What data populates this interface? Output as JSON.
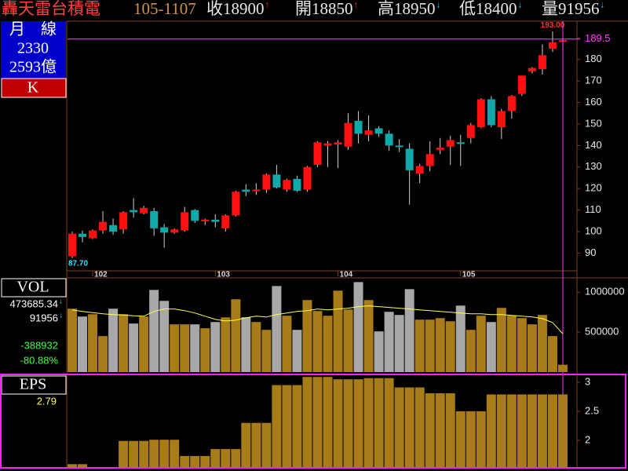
{
  "header": {
    "name": "轟天雷台積電",
    "date": "105-1107",
    "items": [
      {
        "text": "收18900",
        "arrow": "↑",
        "arrow_color": "#ff3030"
      },
      {
        "text": "開18850",
        "arrow": "↑",
        "arrow_color": "#ff3030"
      },
      {
        "text": "高18950",
        "arrow": "↓",
        "arrow_color": "#00e0ff"
      },
      {
        "text": "低18400",
        "arrow": "↓",
        "arrow_color": "#00e0ff"
      },
      {
        "text": "量91956",
        "arrow": "↓",
        "arrow_color": "#00e0ff"
      }
    ]
  },
  "side": {
    "title": "月　線",
    "code": "2330",
    "cap": "2593億",
    "period": "K"
  },
  "vol_panel": {
    "label": "VOL",
    "items": [
      {
        "text": "473685.34",
        "color": "#ffffff",
        "arrow": "↓"
      },
      {
        "text": "91956",
        "color": "#ffffff",
        "arrow": "↓"
      },
      {
        "text": "-388932",
        "color": "#40ff40"
      },
      {
        "text": "-80.88%",
        "color": "#40ff40"
      }
    ]
  },
  "eps_panel": {
    "label": "EPS",
    "value_text": "2.79"
  },
  "chart_data": [
    {
      "type": "candlestick",
      "categories": [
        null,
        null,
        "102",
        null,
        null,
        null,
        null,
        null,
        null,
        null,
        null,
        null,
        null,
        null,
        "103",
        null,
        null,
        null,
        null,
        null,
        null,
        null,
        null,
        null,
        null,
        null,
        "104",
        null,
        null,
        null,
        null,
        null,
        null,
        null,
        null,
        null,
        null,
        null,
        "105",
        null,
        null,
        null,
        null,
        null,
        null,
        null,
        null,
        null,
        null
      ],
      "open": [
        88.5,
        99,
        97,
        100.5,
        103,
        101,
        110,
        108.5,
        109.5,
        102,
        99.5,
        100.5,
        110,
        105,
        105.5,
        101.5,
        107.5,
        119.5,
        119,
        119.5,
        126.5,
        119.5,
        124.5,
        119.5,
        131,
        140,
        140.5,
        139.5,
        151.5,
        145,
        148,
        145.5,
        140,
        138.5,
        127,
        130.5,
        138,
        139.5,
        141.5,
        143.5,
        148.5,
        161.5,
        148.5,
        156,
        164,
        174.5,
        175.5,
        185,
        188.5
      ],
      "high": [
        100,
        100.5,
        101,
        109.5,
        106,
        109.5,
        115.5,
        112,
        111,
        103.5,
        101.5,
        111.5,
        110.5,
        106,
        108,
        108,
        119,
        122,
        122.5,
        127,
        131,
        124.5,
        126,
        130.5,
        142,
        142,
        142.5,
        155,
        156,
        154,
        149,
        147,
        143,
        141,
        131.5,
        142,
        143.5,
        144.5,
        145,
        150.5,
        162,
        163,
        157,
        163.5,
        172.5,
        176.5,
        187,
        193,
        189.5
      ],
      "low": [
        87.7,
        95,
        96.5,
        99,
        98.5,
        99,
        106.5,
        108,
        98,
        92.5,
        99,
        100,
        104,
        103,
        102,
        100,
        107,
        116.5,
        117,
        118,
        120,
        118.5,
        118.5,
        118.5,
        130,
        130,
        129.5,
        138,
        141,
        142,
        144,
        137.5,
        137,
        112.5,
        122.5,
        128,
        136,
        131,
        130.5,
        141,
        148,
        148.5,
        143,
        152.5,
        163,
        173.5,
        173,
        183.5,
        184
      ],
      "close": [
        99,
        97.5,
        100.5,
        104.5,
        100,
        109,
        109,
        111,
        101.5,
        99.5,
        101,
        109,
        105,
        105.5,
        104.5,
        107.5,
        118.5,
        118.5,
        119.5,
        126.5,
        120.5,
        124,
        119,
        130,
        141.5,
        141,
        141.5,
        150.5,
        145.5,
        147,
        145.5,
        140,
        139.5,
        128.5,
        130.5,
        136,
        139,
        142.5,
        141,
        149.5,
        161.5,
        149.5,
        156,
        163,
        172.5,
        176,
        182,
        188,
        189
      ],
      "up_color": "#ff1010",
      "down_color": "#10a8a8",
      "ylim": [
        81.75,
        197.8
      ],
      "yticks": [
        90,
        100,
        110,
        120,
        130,
        140,
        150,
        160,
        170,
        180,
        190
      ],
      "annotations": [
        {
          "value": 87.7,
          "label": "87.70",
          "color": "#30e0ff",
          "of": "low"
        },
        {
          "value": 193,
          "label": "193.00",
          "color": "#ff3030",
          "of": "high"
        }
      ],
      "crosshair": {
        "value": 189.5,
        "label": "189.5",
        "color": "#ff40ff"
      }
    },
    {
      "type": "bar",
      "values": [
        794000,
        696000,
        725000,
        451000,
        794000,
        725000,
        608000,
        696000,
        1029000,
        892000,
        598000,
        598000,
        598000,
        549000,
        627000,
        686000,
        912000,
        686000,
        627000,
        529000,
        1078000,
        706000,
        529000,
        902000,
        765000,
        706000,
        1020000,
        784000,
        1127000,
        902000,
        510000,
        755000,
        716000,
        1039000,
        657000,
        657000,
        676000,
        637000,
        833000,
        529000,
        706000,
        627000,
        804000,
        706000,
        676000,
        598000,
        716000,
        451000,
        91956
      ],
      "up_color": "#a87c18",
      "down_color": "#a8a8a8",
      "line": {
        "color": "#ffff50",
        "values": [
          780000,
          760000,
          745000,
          730000,
          720000,
          715000,
          705000,
          700000,
          760000,
          790000,
          790000,
          770000,
          740000,
          700000,
          660000,
          640000,
          650000,
          680000,
          700000,
          690000,
          720000,
          740000,
          760000,
          770000,
          790000,
          780000,
          790000,
          800000,
          820000,
          830000,
          820000,
          810000,
          800000,
          790000,
          780000,
          770000,
          760000,
          750000,
          740000,
          730000,
          730000,
          720000,
          720000,
          710000,
          700000,
          690000,
          670000,
          620000,
          480000
        ]
      },
      "ylim": [
        0,
        1170000
      ],
      "yticks": [
        500000,
        1000000
      ]
    },
    {
      "type": "bar",
      "values": [
        1.59,
        1.59,
        null,
        null,
        null,
        1.99,
        1.99,
        1.99,
        2.01,
        2.01,
        2.01,
        1.73,
        1.73,
        1.73,
        1.85,
        1.85,
        1.85,
        2.3,
        2.3,
        2.3,
        2.95,
        2.95,
        2.95,
        3.09,
        3.09,
        3.09,
        3.05,
        3.05,
        3.05,
        3.07,
        3.07,
        3.07,
        2.91,
        2.91,
        2.91,
        2.81,
        2.81,
        2.81,
        2.5,
        2.5,
        2.5,
        2.79,
        2.79,
        2.79,
        2.79,
        2.79,
        2.79,
        2.79,
        2.79
      ],
      "color": "#a87c18",
      "ylim": [
        1.54,
        3.12
      ],
      "yticks": [
        2,
        2.5,
        3
      ]
    }
  ]
}
